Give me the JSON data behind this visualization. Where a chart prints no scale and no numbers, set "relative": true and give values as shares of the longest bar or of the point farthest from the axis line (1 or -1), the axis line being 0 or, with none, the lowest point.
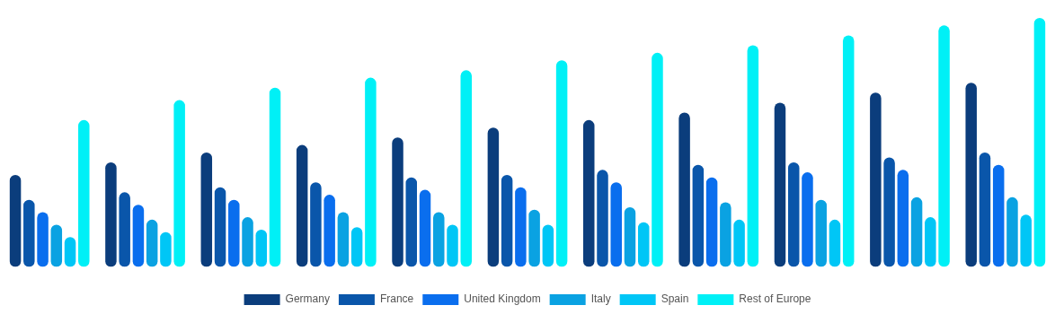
{
  "chart_data": {
    "type": "bar",
    "relative": true,
    "grid": false,
    "legend": "bottom",
    "categories": [
      null,
      null,
      null,
      null,
      null,
      null,
      null,
      null,
      null,
      null,
      null
    ],
    "series": [
      {
        "name": "Germany",
        "color": "#0b3d7c",
        "values": [
          0.37,
          0.42,
          0.46,
          0.49,
          0.52,
          0.56,
          0.59,
          0.62,
          0.66,
          0.7,
          0.74
        ]
      },
      {
        "name": "France",
        "color": "#0a56aa",
        "values": [
          0.27,
          0.3,
          0.32,
          0.34,
          0.36,
          0.37,
          0.39,
          0.41,
          0.42,
          0.44,
          0.46
        ]
      },
      {
        "name": "United Kingdom",
        "color": "#0a6eee",
        "values": [
          0.22,
          0.25,
          0.27,
          0.29,
          0.31,
          0.32,
          0.34,
          0.36,
          0.38,
          0.39,
          0.41
        ]
      },
      {
        "name": "Italy",
        "color": "#0aa2e2",
        "values": [
          0.17,
          0.19,
          0.2,
          0.22,
          0.22,
          0.23,
          0.24,
          0.26,
          0.27,
          0.28,
          0.28
        ]
      },
      {
        "name": "Spain",
        "color": "#00c6f6",
        "values": [
          0.12,
          0.14,
          0.15,
          0.16,
          0.17,
          0.17,
          0.18,
          0.19,
          0.19,
          0.2,
          0.21
        ]
      },
      {
        "name": "Rest of Europe",
        "color": "#00f0f6",
        "values": [
          0.59,
          0.67,
          0.72,
          0.76,
          0.79,
          0.83,
          0.86,
          0.89,
          0.93,
          0.97,
          1
        ]
      }
    ]
  }
}
